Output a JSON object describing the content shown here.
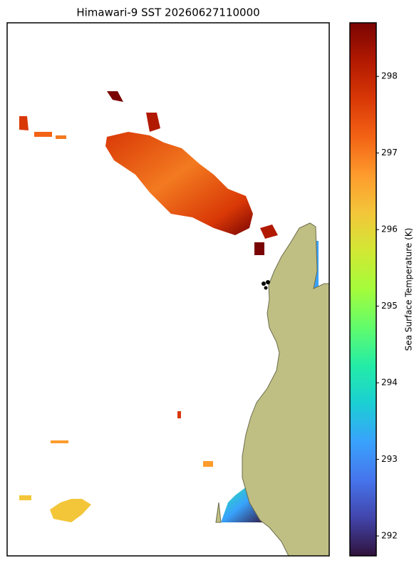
{
  "chart_data": {
    "type": "map",
    "title": "Himawari-9 SST 20260627110000",
    "colorbar": {
      "label": "Sea Surface Temperature (K)",
      "lim": [
        291.74,
        298.7
      ],
      "ticks": [
        292,
        293,
        294,
        295,
        296,
        297,
        298
      ],
      "colors": [
        "#30123b",
        "#4145ab",
        "#4675ed",
        "#39a2fc",
        "#1bcfd4",
        "#24eca6",
        "#61fc6c",
        "#a4fc3b",
        "#d1e834",
        "#f3c63a",
        "#fe9b2d",
        "#f36315",
        "#d93806",
        "#b11901",
        "#7a0403"
      ]
    }
  }
}
